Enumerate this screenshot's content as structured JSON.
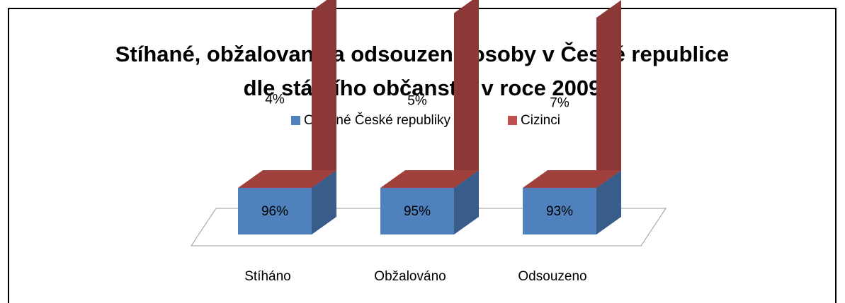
{
  "chart_data": {
    "type": "bar3d_stacked",
    "title": "Stíhané, obžalované a odsouzené osoby v České republice",
    "subtitle": "dle státního občanství v roce 2009",
    "categories": [
      "Stíháno",
      "Obžalováno",
      "Odsouzeno"
    ],
    "series": [
      {
        "name": "Občané České republiky",
        "color": "#4f81bd",
        "side_color": "#385d8a",
        "values": [
          96,
          95,
          93
        ],
        "value_labels": [
          "96%",
          "95%",
          "93%"
        ]
      },
      {
        "name": "Cizinci",
        "color": "#c0504d",
        "side_color": "#8c3836",
        "top_color": "#a0403d",
        "values": [
          4,
          5,
          7
        ],
        "value_labels": [
          "4%",
          "5%",
          "7%"
        ]
      }
    ],
    "ylim": [
      80,
      100
    ],
    "legend": "top"
  }
}
